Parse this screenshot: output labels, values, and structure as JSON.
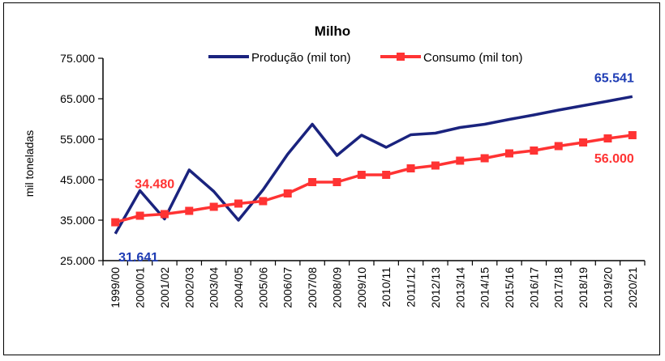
{
  "chart_data": {
    "type": "line",
    "title": "Milho",
    "xlabel": "",
    "ylabel": "mil toneladas",
    "ylim": [
      25000,
      75000
    ],
    "yticks": [
      25000,
      35000,
      45000,
      55000,
      65000,
      75000
    ],
    "ytick_labels": [
      "25.000",
      "35.000",
      "45.000",
      "55.000",
      "65.000",
      "75.000"
    ],
    "grid": false,
    "legend": "top-center",
    "categories": [
      "1999/00",
      "2000/01",
      "2001/02",
      "2002/03",
      "2003/04",
      "2004/05",
      "2005/06",
      "2006/07",
      "2007/08",
      "2008/09",
      "2009/10",
      "2010/11",
      "2011/12",
      "2012/13",
      "2013/14",
      "2014/15",
      "2015/16",
      "2016/17",
      "2017/18",
      "2018/19",
      "2019/20",
      "2020/21"
    ],
    "series": [
      {
        "name": "Produção (mil ton)",
        "color": "#1a237e",
        "marker": "none",
        "values": [
          31641,
          42300,
          35300,
          47400,
          42100,
          35000,
          42500,
          51300,
          58700,
          51000,
          56000,
          53000,
          56100,
          56500,
          57900,
          58700,
          59900,
          61000,
          62200,
          63300,
          64400,
          65541
        ]
      },
      {
        "name": "Consumo (mil ton)",
        "color": "#ff3333",
        "marker": "square",
        "values": [
          34480,
          36100,
          36500,
          37300,
          38300,
          39100,
          39700,
          41600,
          44400,
          44400,
          46200,
          46200,
          47800,
          48500,
          49700,
          50300,
          51500,
          52200,
          53300,
          54200,
          55200,
          56000
        ]
      }
    ],
    "annotations": [
      {
        "text": "34.480",
        "color": "#ff3333",
        "anchor": "series-1-first"
      },
      {
        "text": "31.641",
        "color": "#1e3cb4",
        "anchor": "series-0-first"
      },
      {
        "text": "65.541",
        "color": "#1e3cb4",
        "anchor": "series-0-last"
      },
      {
        "text": "56.000",
        "color": "#ff3333",
        "anchor": "series-1-last"
      }
    ]
  }
}
